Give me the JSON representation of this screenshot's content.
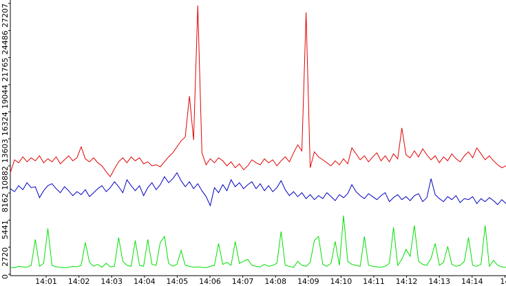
{
  "chart_data": {
    "type": "line",
    "xticks": [
      "14:01",
      "14:02",
      "14:03",
      "14:04",
      "14:05",
      "14:06",
      "14:07",
      "14:08",
      "14:09",
      "14:10",
      "14:11",
      "14:12",
      "14:13",
      "14:14",
      "14"
    ],
    "ylim": [
      0,
      27207
    ],
    "yticks": [
      0,
      2720,
      5441,
      8162,
      10882,
      13603,
      16324,
      19044,
      21765,
      24486,
      27207
    ],
    "series": [
      {
        "color": "#e00000",
        "values": [
          10200,
          11500,
          11200,
          11800,
          11300,
          11700,
          11400,
          11900,
          11200,
          11600,
          11300,
          11800,
          11100,
          11500,
          11900,
          11400,
          11700,
          12800,
          11600,
          11300,
          11700,
          11200,
          10900,
          10300,
          9800,
          10600,
          11300,
          11700,
          11200,
          11800,
          11400,
          11700,
          11100,
          11300,
          10900,
          11000,
          10800,
          11300,
          11800,
          12200,
          12800,
          13400,
          13800,
          17900,
          13500,
          27000,
          12200,
          11000,
          11600,
          11200,
          11700,
          11400,
          10900,
          11300,
          10700,
          11100,
          10500,
          10900,
          11500,
          11200,
          11000,
          11600,
          11200,
          11500,
          10900,
          11400,
          11800,
          11300,
          12200,
          13000,
          12400,
          26300,
          10700,
          12300,
          11800,
          11500,
          11200,
          10900,
          11400,
          11000,
          11600,
          11100,
          12700,
          12100,
          11500,
          11900,
          11300,
          11800,
          12200,
          11400,
          11900,
          11300,
          12100,
          11600,
          14700,
          12000,
          11700,
          12400,
          11800,
          12600,
          12000,
          11500,
          11900,
          11200,
          11800,
          11400,
          12100,
          11600,
          11300,
          11900,
          12300,
          11700,
          12700,
          12100,
          11500,
          11900,
          11400,
          11000,
          10700,
          10900
        ]
      },
      {
        "color": "#0000c0",
        "values": [
          8600,
          8300,
          8900,
          8500,
          9200,
          8700,
          8800,
          7700,
          8400,
          8900,
          9100,
          8600,
          8200,
          8800,
          8400,
          7900,
          8300,
          8000,
          8500,
          7800,
          8200,
          8600,
          8900,
          8300,
          8700,
          9300,
          8800,
          8200,
          9500,
          8900,
          8400,
          8900,
          7900,
          8700,
          9200,
          8500,
          9000,
          9800,
          9200,
          9600,
          10200,
          9400,
          8800,
          9300,
          8600,
          9100,
          8400,
          7800,
          6900,
          8700,
          8200,
          9000,
          8400,
          9500,
          8800,
          9200,
          8600,
          9000,
          9300,
          8600,
          9100,
          8400,
          8900,
          8300,
          8700,
          9400,
          8500,
          7900,
          8300,
          7800,
          8200,
          7600,
          8000,
          7500,
          7900,
          7600,
          8200,
          7800,
          7400,
          8000,
          7700,
          8100,
          9000,
          8300,
          7900,
          7600,
          8100,
          7800,
          7500,
          7900,
          8200,
          7300,
          7700,
          8000,
          7500,
          7800,
          7400,
          7900,
          8100,
          7300,
          7700,
          9600,
          8000,
          7600,
          7300,
          7800,
          7500,
          7900,
          7200,
          7600,
          7500,
          7800,
          7100,
          7600,
          7300,
          7700,
          7400,
          7000,
          7500,
          7100
        ]
      },
      {
        "color": "#00e000",
        "values": [
          700,
          650,
          800,
          750,
          700,
          900,
          3500,
          800,
          1100,
          4600,
          900,
          750,
          700,
          650,
          700,
          800,
          750,
          900,
          3200,
          1200,
          800,
          1000,
          700,
          1100,
          750,
          800,
          3700,
          1300,
          900,
          800,
          3400,
          900,
          800,
          3500,
          1000,
          900,
          3200,
          3800,
          1100,
          800,
          1000,
          2400,
          900,
          800,
          700,
          750,
          700,
          650,
          800,
          900,
          3100,
          1000,
          1200,
          900,
          3300,
          1100,
          1300,
          1500,
          900,
          800,
          750,
          1000,
          800,
          900,
          1100,
          4300,
          900,
          800,
          700,
          1300,
          900,
          800,
          1200,
          3400,
          3800,
          1000,
          800,
          1100,
          3300,
          900,
          5900,
          1300,
          1000,
          900,
          800,
          3800,
          900,
          800,
          750,
          700,
          800,
          1100,
          4700,
          900,
          1500,
          2500,
          1800,
          4900,
          1300,
          1000,
          900,
          1600,
          3100,
          900,
          1200,
          2800,
          1000,
          800,
          900,
          1300,
          3700,
          900,
          800,
          1000,
          4900,
          800,
          1400,
          900,
          750,
          700
        ]
      }
    ]
  }
}
